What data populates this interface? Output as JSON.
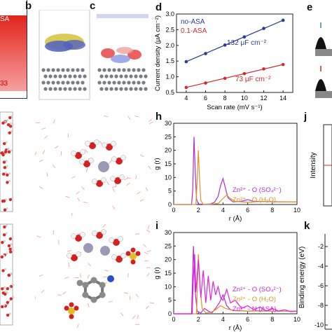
{
  "panels": {
    "b": "b",
    "c": "c",
    "d": "d",
    "e": "e",
    "h": "h",
    "i": "i",
    "j": "j",
    "k": "k"
  },
  "panel_a": {
    "label_top": "SA",
    "label_bottom": "33",
    "bar_color": "#e2231a"
  },
  "panel_d": {
    "xlabel": "Scan rate (mV s⁻¹)",
    "ylabel": "Current density (μA cm⁻²)",
    "legend": [
      {
        "name": "no-ASA",
        "color": "#2b3a9a"
      },
      {
        "name": "0.1-ASA",
        "color": "#d42a2a"
      }
    ],
    "annotations": [
      "132 μF cm⁻²",
      "73 μF cm⁻²"
    ]
  },
  "panel_h": {
    "xlabel": "r (Å)",
    "ylabel": "g (r)",
    "legend": [
      {
        "name": "Zn²⁺ - O (SO₄²⁻)",
        "color": "#b32bd6"
      },
      {
        "name": "Zn²⁺ - O (H₂O)",
        "color": "#e0902a"
      }
    ]
  },
  "panel_i": {
    "xlabel": "r (Å)",
    "ylabel": "g (r)",
    "legend": [
      {
        "name": "Zn²⁺ - O (SO₄²⁻)",
        "color": "#b32bd6"
      },
      {
        "name": "Zn²⁺ - O (H₂O)",
        "color": "#e0902a"
      },
      {
        "name": "Zn²⁺ - N (ASA)",
        "color": "#e020e0"
      }
    ]
  },
  "panel_j": {
    "ylabel": "Intensity"
  },
  "panel_k": {
    "ylabel": "Binding energy (eV)",
    "ticks": [
      "-2",
      "-4",
      "-6",
      "-8",
      "-10"
    ]
  },
  "chart_data": [
    {
      "type": "scatter",
      "panel": "d",
      "xlim": [
        3,
        15
      ],
      "ylim": [
        0.5,
        3.0
      ],
      "x_ticks": [
        4,
        6,
        8,
        10,
        12,
        14
      ],
      "y_ticks": [
        0.5,
        1.0,
        1.5,
        2.0,
        2.5,
        3.0
      ],
      "series": [
        {
          "name": "no-ASA",
          "x": [
            4,
            6,
            8,
            10,
            12,
            14
          ],
          "y": [
            1.48,
            1.74,
            2.01,
            2.27,
            2.54,
            2.8
          ]
        },
        {
          "name": "0.1-ASA",
          "x": [
            4,
            6,
            8,
            10,
            12,
            14
          ],
          "y": [
            0.66,
            0.8,
            0.95,
            1.1,
            1.25,
            1.39
          ]
        }
      ]
    },
    {
      "type": "line",
      "panel": "h",
      "xlim": [
        0,
        10
      ],
      "ylim": [
        0,
        30
      ],
      "x_ticks": [
        0,
        2,
        4,
        6,
        8,
        10
      ],
      "y_ticks": [
        0,
        5,
        10,
        15,
        20,
        25,
        30
      ],
      "series": [
        {
          "name": "Zn²⁺ - O (SO₄²⁻)",
          "x": [
            0,
            1.45,
            1.55,
            1.65,
            1.75,
            1.85,
            2.0,
            2.5,
            3.0,
            3.3,
            3.6,
            3.8,
            4.0,
            4.2,
            4.4,
            4.8,
            5.5,
            6.0,
            6.5,
            7.5,
            9.0,
            10.0
          ],
          "y": [
            0,
            0,
            6,
            25,
            12,
            2,
            0.2,
            0.1,
            0.2,
            0.8,
            3,
            7,
            9.6,
            6,
            2.5,
            1,
            1.2,
            1.8,
            1.2,
            1.05,
            1.0,
            1.0
          ]
        },
        {
          "name": "Zn²⁺ - O (H₂O)",
          "x": [
            0,
            1.8,
            1.9,
            2.0,
            2.1,
            2.2,
            2.4,
            3.0,
            3.6,
            4.0,
            4.3,
            4.6,
            5.0,
            6.0,
            7.0,
            8.5,
            10.0
          ],
          "y": [
            0,
            0,
            8,
            20,
            9,
            1.5,
            0.1,
            0.1,
            0.4,
            2.2,
            3.5,
            2.2,
            1.2,
            0.8,
            1.1,
            1.0,
            1.0
          ]
        }
      ]
    },
    {
      "type": "line",
      "panel": "i",
      "xlim": [
        0,
        10
      ],
      "ylim": [
        0,
        30
      ],
      "x_ticks": [
        0,
        2,
        4,
        6,
        8,
        10
      ],
      "y_ticks": [
        0,
        5,
        10,
        15,
        20,
        25,
        30
      ],
      "series": [
        {
          "name": "Zn²⁺ - O (SO₄²⁻)",
          "x": [
            0,
            1.45,
            1.6,
            1.75,
            1.9,
            2.2,
            2.5,
            2.8,
            3.1,
            3.4,
            3.7,
            4.0,
            4.3,
            4.6,
            5.0,
            6.0,
            7.0,
            8.0,
            10.0
          ],
          "y": [
            0,
            0,
            25,
            8,
            1,
            0.3,
            2,
            1,
            0.4,
            2,
            4,
            7,
            3,
            1.5,
            1.2,
            1.0,
            1.1,
            1.0,
            1.0
          ]
        },
        {
          "name": "Zn²⁺ - O (H₂O)",
          "x": [
            0,
            1.85,
            2.0,
            2.15,
            2.3,
            2.6,
            3.0,
            3.4,
            3.8,
            4.2,
            4.6,
            5.0,
            6.0,
            8.0,
            10.0
          ],
          "y": [
            0,
            0,
            22,
            10,
            2,
            0.3,
            0.5,
            1.5,
            3,
            2,
            1.5,
            1.1,
            1.0,
            1.0,
            1.0
          ]
        },
        {
          "name": "Zn²⁺ - N (ASA)",
          "x": [
            0,
            1.5,
            1.6,
            1.7,
            1.8,
            2.0,
            2.2,
            2.4,
            2.6,
            2.8,
            3.0,
            3.2,
            3.4,
            3.6,
            3.8,
            4.0,
            4.3,
            4.6,
            5.0,
            5.5,
            6.0,
            6.5,
            7.0,
            7.5,
            8.0,
            8.5,
            9.0,
            9.5,
            10.0
          ],
          "y": [
            0,
            0,
            14,
            22,
            8,
            20,
            6,
            16,
            4,
            14,
            5,
            12,
            7,
            10,
            6,
            5,
            9,
            4,
            5,
            2,
            3,
            1.5,
            2.5,
            1,
            2,
            1,
            1.5,
            0.8,
            1.0
          ]
        }
      ]
    }
  ]
}
